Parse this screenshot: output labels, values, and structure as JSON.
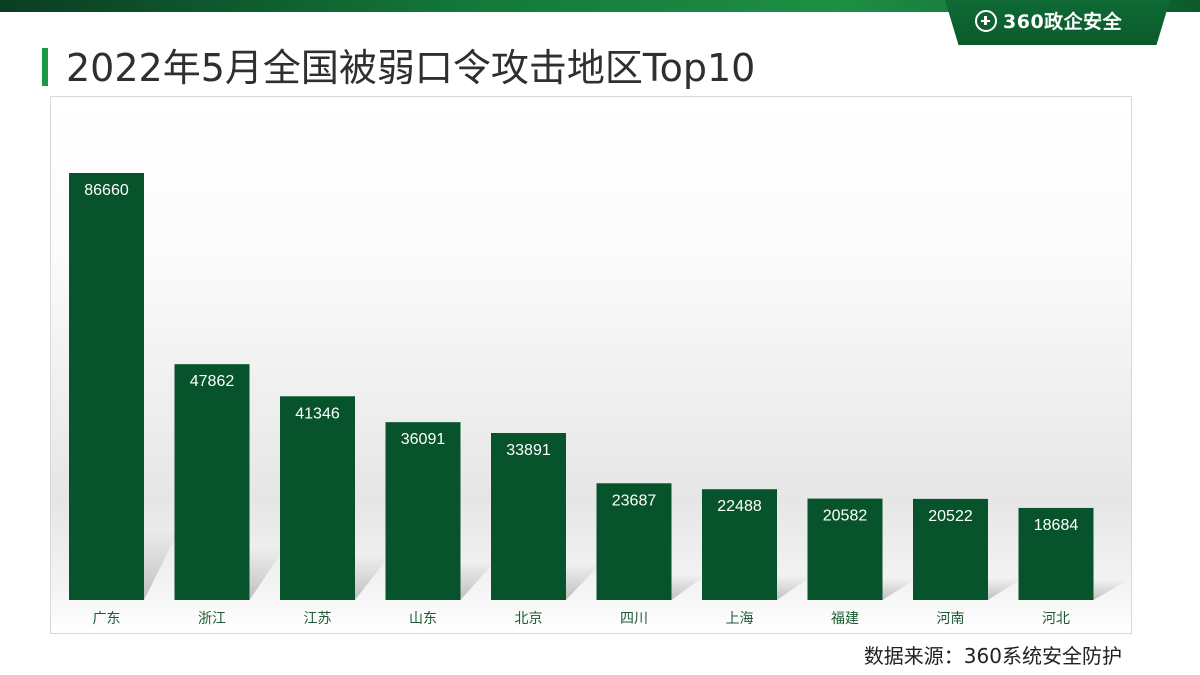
{
  "header": {
    "logo_text": "360政企安全",
    "logo_icon": "plus-circle-icon",
    "brand_color": "#0b5a2b"
  },
  "title": "2022年5月全国被弱口令攻击地区Top10",
  "source_note": "数据来源：360系统安全防护",
  "chart_data": {
    "type": "bar",
    "title": "",
    "xlabel": "",
    "ylabel": "",
    "categories": [
      "广东",
      "浙江",
      "江苏",
      "山东",
      "北京",
      "四川",
      "上海",
      "福建",
      "河南",
      "河北"
    ],
    "values": [
      86660,
      47862,
      41346,
      36091,
      33891,
      23687,
      22488,
      20582,
      20522,
      18684
    ],
    "ylim": [
      0,
      90000
    ],
    "grid": false,
    "legend": "none",
    "bar_color": "#07542c",
    "label_color": "#ffffff",
    "data_labels": "inside-top"
  }
}
